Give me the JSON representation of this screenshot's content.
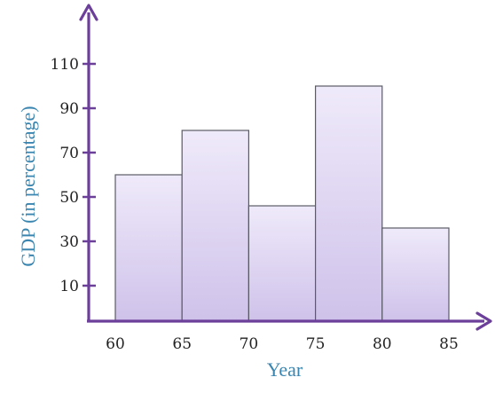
{
  "chart_data": {
    "type": "bar",
    "xlabel": "Year",
    "ylabel": "GDP (in percentage)",
    "x_ticks": [
      "60",
      "65",
      "70",
      "75",
      "80",
      "85"
    ],
    "y_ticks": [
      "10",
      "30",
      "50",
      "70",
      "90",
      "110"
    ],
    "bins": [
      {
        "start": 60,
        "end": 65,
        "value": 60
      },
      {
        "start": 65,
        "end": 70,
        "value": 80
      },
      {
        "start": 70,
        "end": 75,
        "value": 46
      },
      {
        "start": 75,
        "end": 80,
        "value": 100
      },
      {
        "start": 80,
        "end": 85,
        "value": 36
      }
    ],
    "xlim": [
      58.2,
      85
    ],
    "ylim": [
      -6,
      126
    ],
    "grid": false,
    "colors": {
      "axis": "#6b3f9a",
      "bar_top": "#efeafa",
      "bar_bottom": "#cfc2ea",
      "bar_stroke": "#5a5a66",
      "label": "#3b86b0"
    }
  }
}
